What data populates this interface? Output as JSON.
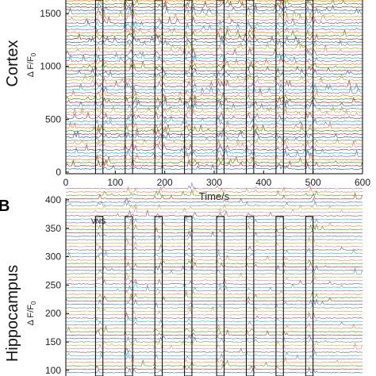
{
  "figure": {
    "panel_b_letter": "B",
    "panel_a_region": "Cortex",
    "panel_b_region": "Hippocampus",
    "dff_label_base": "Δ F/F",
    "dff_label_sub": "0",
    "panel_a_xlabel": "Time/s",
    "vns_label": "VNS"
  },
  "chart_data": [
    {
      "type": "line",
      "panel": "A",
      "title": "",
      "xlabel": "Time/s",
      "ylabel": "Cortex Δ F/F0",
      "xlim": [
        0,
        600
      ],
      "ylim": [
        0,
        1800
      ],
      "x_ticks": [
        0,
        100,
        200,
        300,
        400,
        500,
        600
      ],
      "y_ticks": [
        0,
        500,
        1000,
        1500
      ],
      "n_traces": 60,
      "trace_offset": 30,
      "stimulation_windows": [
        [
          60,
          75
        ],
        [
          120,
          135
        ],
        [
          180,
          195
        ],
        [
          240,
          255
        ],
        [
          305,
          320
        ],
        [
          365,
          380
        ],
        [
          425,
          440
        ],
        [
          485,
          500
        ]
      ],
      "colors": [
        "#1f77b4",
        "#d62728",
        "#2ca02c",
        "#ff7f0e",
        "#9467bd",
        "#17becf",
        "#8c564b",
        "#e377c2",
        "#bcbd22",
        "#7f7f7f"
      ]
    },
    {
      "type": "line",
      "panel": "B",
      "title": "",
      "xlabel": "",
      "ylabel": "Hippocampus Δ F/F0",
      "xlim": [
        0,
        600
      ],
      "ylim": [
        90,
        400
      ],
      "y_ticks": [
        100,
        150,
        200,
        250,
        300,
        350,
        400
      ],
      "n_traces": 55,
      "trace_offset": 5,
      "stimulation_windows": [
        [
          60,
          75
        ],
        [
          120,
          135
        ],
        [
          180,
          195
        ],
        [
          240,
          255
        ],
        [
          305,
          320
        ],
        [
          365,
          380
        ],
        [
          425,
          440
        ],
        [
          485,
          500
        ]
      ],
      "colors": [
        "#1f77b4",
        "#d62728",
        "#2ca02c",
        "#ff7f0e",
        "#9467bd",
        "#17becf",
        "#8c564b",
        "#e377c2",
        "#bcbd22",
        "#7f7f7f"
      ]
    }
  ]
}
